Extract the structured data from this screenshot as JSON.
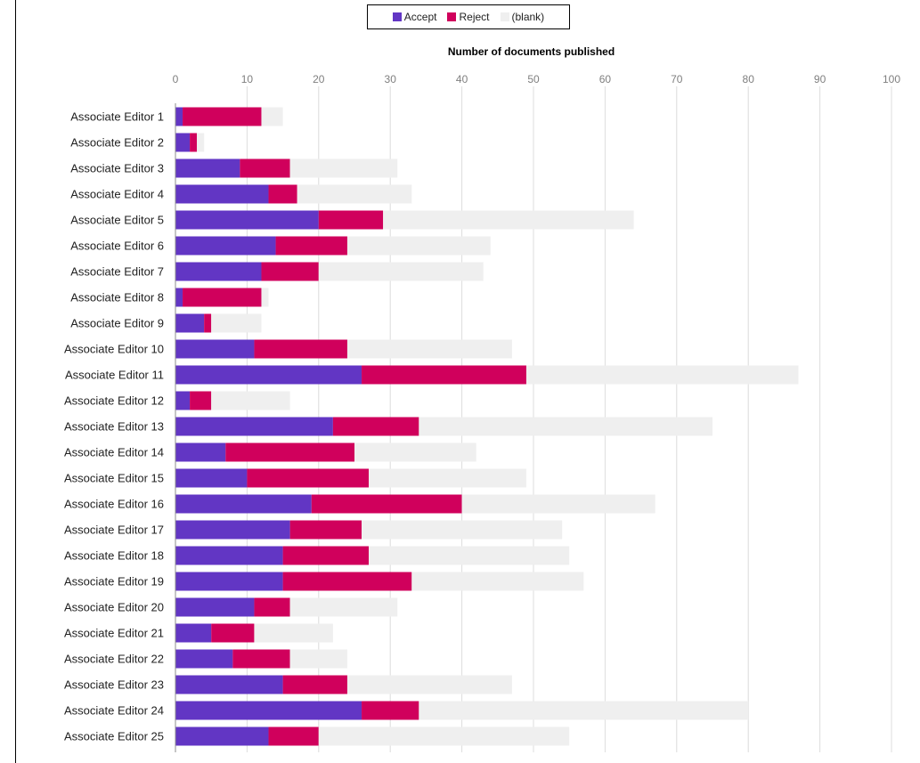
{
  "chart_data": {
    "type": "bar",
    "orientation": "horizontal",
    "stacked": true,
    "title": "",
    "xlabel": "Number of documents published",
    "ylabel": "",
    "xlim": [
      0,
      100
    ],
    "xticks": [
      0,
      10,
      20,
      30,
      40,
      50,
      60,
      70,
      80,
      90,
      100
    ],
    "grid": true,
    "legend_position": "top",
    "categories": [
      "Associate Editor 1",
      "Associate Editor 2",
      "Associate Editor 3",
      "Associate Editor 4",
      "Associate Editor 5",
      "Associate Editor 6",
      "Associate Editor 7",
      "Associate Editor 8",
      "Associate Editor 9",
      "Associate Editor 10",
      "Associate Editor 11",
      "Associate Editor 12",
      "Associate Editor 13",
      "Associate Editor 14",
      "Associate Editor 15",
      "Associate Editor 16",
      "Associate Editor 17",
      "Associate Editor 18",
      "Associate Editor 19",
      "Associate Editor 20",
      "Associate Editor 21",
      "Associate Editor 22",
      "Associate Editor 23",
      "Associate Editor 24",
      "Associate Editor 25"
    ],
    "series": [
      {
        "name": "Accept",
        "color": "#6236c4",
        "values": [
          1,
          2,
          9,
          13,
          20,
          14,
          12,
          1,
          4,
          11,
          26,
          2,
          22,
          7,
          10,
          19,
          16,
          15,
          15,
          11,
          5,
          8,
          15,
          26,
          13
        ]
      },
      {
        "name": "Reject",
        "color": "#d0005c",
        "values": [
          11,
          1,
          7,
          4,
          9,
          10,
          8,
          11,
          1,
          13,
          23,
          3,
          12,
          18,
          17,
          21,
          10,
          12,
          18,
          5,
          6,
          8,
          9,
          8,
          7
        ]
      },
      {
        "name": "(blank)",
        "color": "#efefef",
        "values": [
          3,
          1,
          15,
          16,
          35,
          20,
          23,
          1,
          7,
          23,
          38,
          11,
          41,
          17,
          22,
          27,
          28,
          28,
          24,
          15,
          11,
          8,
          23,
          46,
          35
        ]
      }
    ]
  }
}
